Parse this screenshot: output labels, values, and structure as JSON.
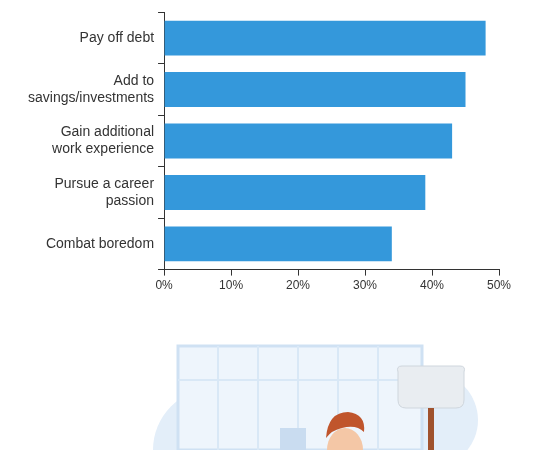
{
  "chart_data": {
    "type": "bar",
    "orientation": "horizontal",
    "categories": [
      "Pay off debt",
      "Add to savings/investments",
      "Gain additional work experience",
      "Pursue a career passion",
      "Combat boredom"
    ],
    "values": [
      48,
      45,
      43,
      39,
      34
    ],
    "color": "#3498db",
    "xlim": [
      0,
      50
    ],
    "xticks": [
      {
        "value": 0,
        "label": "0%"
      },
      {
        "value": 10,
        "label": "10%"
      },
      {
        "value": 20,
        "label": "20%"
      },
      {
        "value": 30,
        "label": "30%"
      },
      {
        "value": 40,
        "label": "40%"
      },
      {
        "value": 50,
        "label": "50%"
      }
    ],
    "grid": false
  }
}
